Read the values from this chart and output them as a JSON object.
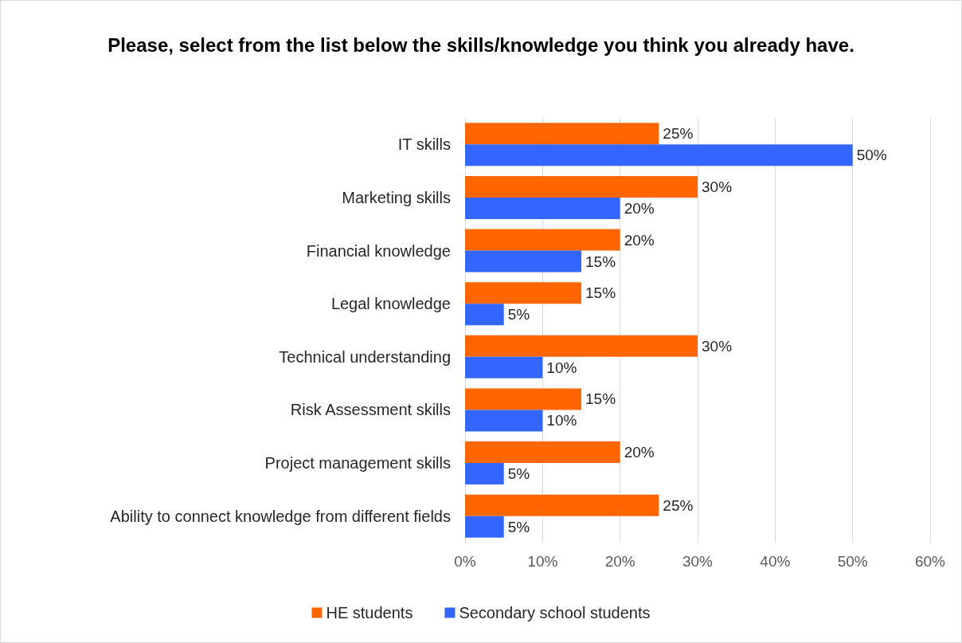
{
  "chart_data": {
    "type": "bar",
    "orientation": "horizontal",
    "title": "Please, select from the list below the skills/knowledge you think you already have.",
    "categories": [
      "IT skills",
      "Marketing skills",
      "Financial knowledge",
      "Legal knowledge",
      "Technical understanding",
      "Risk Assessment skills",
      "Project management skills",
      "Ability to connect knowledge from different fields"
    ],
    "series": [
      {
        "name": "HE students",
        "color": "#ff6600",
        "values": [
          25,
          30,
          20,
          15,
          30,
          15,
          20,
          25
        ],
        "value_labels": [
          "25%",
          "30%",
          "20%",
          "15%",
          "30%",
          "15%",
          "20%",
          "25%"
        ]
      },
      {
        "name": "Secondary school students",
        "color": "#3366ff",
        "values": [
          50,
          20,
          15,
          5,
          10,
          10,
          5,
          5
        ],
        "value_labels": [
          "50%",
          "20%",
          "15%",
          "5%",
          "10%",
          "10%",
          "5%",
          "5%"
        ]
      }
    ],
    "xlim": [
      0,
      60
    ],
    "xticks": [
      {
        "value": 0,
        "label": "0%"
      },
      {
        "value": 10,
        "label": "10%"
      },
      {
        "value": 20,
        "label": "20%"
      },
      {
        "value": 30,
        "label": "30%"
      },
      {
        "value": 40,
        "label": "40%"
      },
      {
        "value": 50,
        "label": "50%"
      },
      {
        "value": 60,
        "label": "60%"
      }
    ],
    "grid": "x",
    "legend": "bottom"
  }
}
